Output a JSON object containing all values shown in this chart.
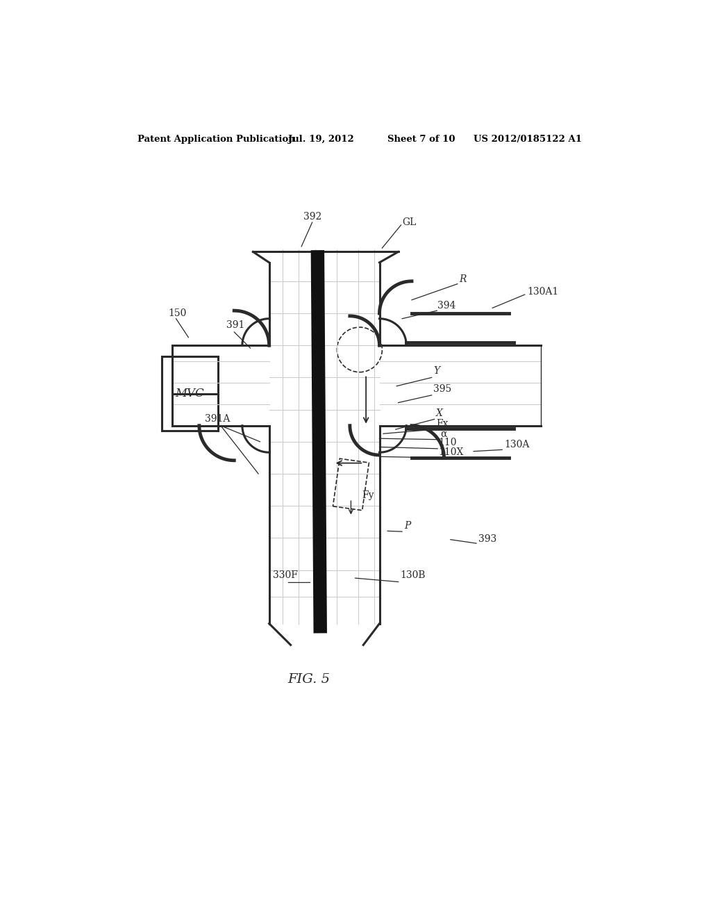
{
  "bg_color": "#ffffff",
  "header_text": "Patent Application Publication",
  "header_date": "Jul. 19, 2012",
  "header_sheet": "Sheet 7 of 10",
  "header_patent": "US 2012/0185122 A1",
  "figure_label": "FIG. 5"
}
